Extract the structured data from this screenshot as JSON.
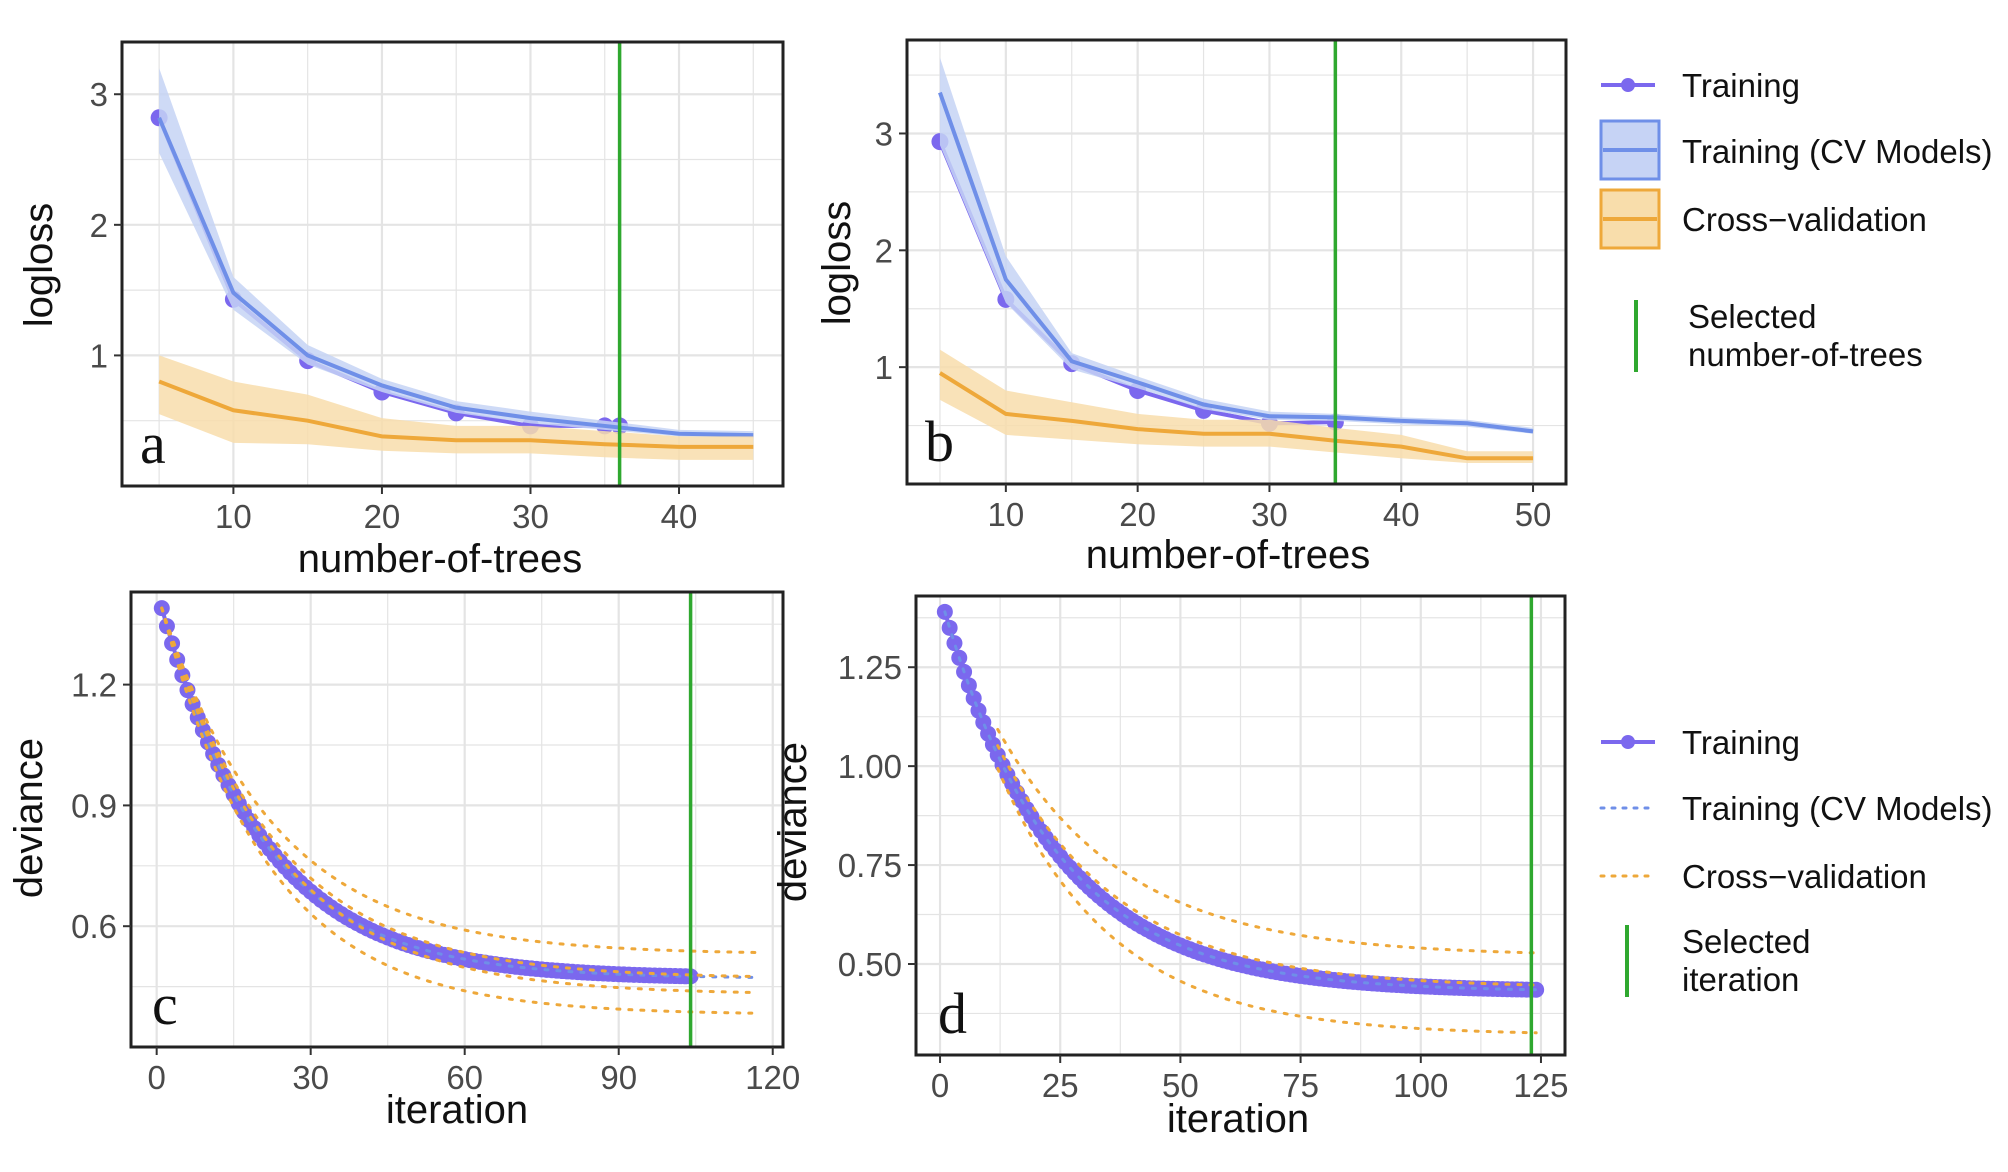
{
  "colors": {
    "training": "#7B68EE",
    "cv_models": "#6F8FE8",
    "cv_band": "#C6D3F5",
    "crossval": "#EEA83A",
    "crossval_band": "#F8DDAB",
    "selected": "#2FA82F",
    "grid": "#e4e4e4",
    "frame": "#222222"
  },
  "legend_top": {
    "training": "Training",
    "cv_models": "Training (CV Models)",
    "crossval": "Cross−validation",
    "selected_l1": "Selected",
    "selected_l2": "number-of-trees"
  },
  "legend_bottom": {
    "training": "Training",
    "cv_models": "Training (CV Models)",
    "crossval": "Cross−validation",
    "selected_l1": "Selected",
    "selected_l2": "iteration"
  },
  "chart_data": [
    {
      "type": "line",
      "panel_label": "a",
      "xlabel": "number-of-trees",
      "ylabel": "logloss",
      "xlim": [
        2.5,
        47
      ],
      "ylim": [
        0,
        3.4
      ],
      "xticks": [
        10,
        20,
        30,
        40
      ],
      "yticks": [
        1,
        2,
        3
      ],
      "selected_x": 36,
      "series": [
        {
          "name": "Training",
          "style": "points",
          "x": [
            5,
            10,
            15,
            20,
            25,
            30,
            35,
            36
          ],
          "values": [
            2.82,
            1.43,
            0.96,
            0.72,
            0.56,
            0.46,
            0.46,
            0.46
          ]
        },
        {
          "name": "Training (CV Models)",
          "style": "line",
          "x": [
            5,
            10,
            15,
            20,
            25,
            30,
            35,
            40,
            45
          ],
          "values": [
            2.82,
            1.48,
            1.0,
            0.77,
            0.6,
            0.52,
            0.46,
            0.4,
            0.39
          ],
          "band_low": [
            2.55,
            1.35,
            0.93,
            0.72,
            0.56,
            0.48,
            0.43,
            0.38,
            0.37
          ],
          "band_high": [
            3.2,
            1.6,
            1.08,
            0.82,
            0.65,
            0.57,
            0.5,
            0.43,
            0.42
          ]
        },
        {
          "name": "Cross-validation",
          "style": "line",
          "x": [
            5,
            10,
            15,
            20,
            25,
            30,
            35,
            40,
            45
          ],
          "values": [
            0.8,
            0.58,
            0.5,
            0.38,
            0.35,
            0.35,
            0.32,
            0.3,
            0.3
          ],
          "band_low": [
            0.55,
            0.33,
            0.32,
            0.27,
            0.25,
            0.25,
            0.22,
            0.2,
            0.2
          ],
          "band_high": [
            1.0,
            0.8,
            0.7,
            0.52,
            0.46,
            0.46,
            0.42,
            0.38,
            0.38
          ]
        }
      ]
    },
    {
      "type": "line",
      "panel_label": "b",
      "xlabel": "number-of-trees",
      "ylabel": "logloss",
      "xlim": [
        2.5,
        52.5
      ],
      "ylim": [
        0,
        3.8
      ],
      "xticks": [
        10,
        20,
        30,
        40,
        50
      ],
      "yticks": [
        1,
        2,
        3
      ],
      "selected_x": 35,
      "series": [
        {
          "name": "Training",
          "style": "points",
          "x": [
            5,
            10,
            15,
            20,
            25,
            30,
            35
          ],
          "values": [
            2.93,
            1.58,
            1.03,
            0.8,
            0.63,
            0.52,
            0.53
          ]
        },
        {
          "name": "Training (CV Models)",
          "style": "line",
          "x": [
            5,
            10,
            15,
            20,
            25,
            30,
            35,
            40,
            45,
            50
          ],
          "values": [
            3.35,
            1.75,
            1.05,
            0.87,
            0.68,
            0.58,
            0.57,
            0.54,
            0.52,
            0.45
          ],
          "band_low": [
            2.9,
            1.55,
            0.98,
            0.82,
            0.64,
            0.55,
            0.54,
            0.51,
            0.49,
            0.43
          ],
          "band_high": [
            3.65,
            1.95,
            1.12,
            0.92,
            0.73,
            0.62,
            0.6,
            0.57,
            0.55,
            0.48
          ]
        },
        {
          "name": "Cross-validation",
          "style": "line",
          "x": [
            5,
            10,
            15,
            20,
            25,
            30,
            35,
            40,
            45,
            50
          ],
          "values": [
            0.95,
            0.6,
            0.54,
            0.47,
            0.43,
            0.43,
            0.37,
            0.32,
            0.22,
            0.22
          ],
          "band_low": [
            0.72,
            0.42,
            0.38,
            0.34,
            0.32,
            0.32,
            0.27,
            0.22,
            0.18,
            0.18
          ],
          "band_high": [
            1.15,
            0.8,
            0.7,
            0.6,
            0.55,
            0.55,
            0.48,
            0.42,
            0.28,
            0.28
          ]
        }
      ]
    },
    {
      "type": "line",
      "panel_label": "c",
      "xlabel": "iteration",
      "ylabel": "deviance",
      "xlim": [
        -5,
        122
      ],
      "ylim": [
        0.3,
        1.43
      ],
      "xticks": [
        0,
        30,
        60,
        90,
        120
      ],
      "yticks": [
        0.6,
        0.9,
        1.2
      ],
      "selected_x": 104,
      "series": [
        {
          "name": "Training",
          "style": "points",
          "n": 104,
          "start": 1.39,
          "end": 0.47,
          "k": 0.05
        },
        {
          "name": "Training (CV Models)",
          "style": "dotted",
          "x_start": 1,
          "x_end": 117,
          "start": 1.39,
          "end": 0.47,
          "k": 0.05
        },
        {
          "name": "Cross-validation",
          "style": "dotted",
          "x_start": 1,
          "x_end": 117,
          "curves": [
            {
              "start": 1.39,
              "end": 0.53,
              "k": 0.045
            },
            {
              "start": 1.39,
              "end": 0.47,
              "k": 0.045
            },
            {
              "start": 1.39,
              "end": 0.43,
              "k": 0.045
            },
            {
              "start": 1.39,
              "end": 0.38,
              "k": 0.048
            }
          ]
        }
      ]
    },
    {
      "type": "line",
      "panel_label": "d",
      "xlabel": "iteration",
      "ylabel": "deviance",
      "xlim": [
        -5,
        130
      ],
      "ylim": [
        0.27,
        1.43
      ],
      "xticks": [
        0,
        25,
        50,
        75,
        100,
        125
      ],
      "yticks": [
        0.5,
        0.75,
        1.0,
        1.25
      ],
      "ytick_labels": [
        "0.50",
        "0.75",
        "1.00",
        "1.25"
      ],
      "selected_x": 123,
      "series": [
        {
          "name": "Training",
          "style": "points",
          "n": 124,
          "start": 1.39,
          "end": 0.43,
          "k": 0.043
        },
        {
          "name": "Training (CV Models)",
          "style": "dotted",
          "x_start": 1,
          "x_end": 124,
          "start": 1.39,
          "end": 0.43,
          "k": 0.043
        },
        {
          "name": "Cross-validation",
          "style": "dotted",
          "x_start": 12,
          "x_end": 124,
          "curves": [
            {
              "start": 1.39,
              "end": 0.52,
              "k": 0.038
            },
            {
              "start": 1.39,
              "end": 0.44,
              "k": 0.04
            },
            {
              "start": 1.39,
              "end": 0.32,
              "k": 0.042
            }
          ]
        }
      ]
    }
  ]
}
